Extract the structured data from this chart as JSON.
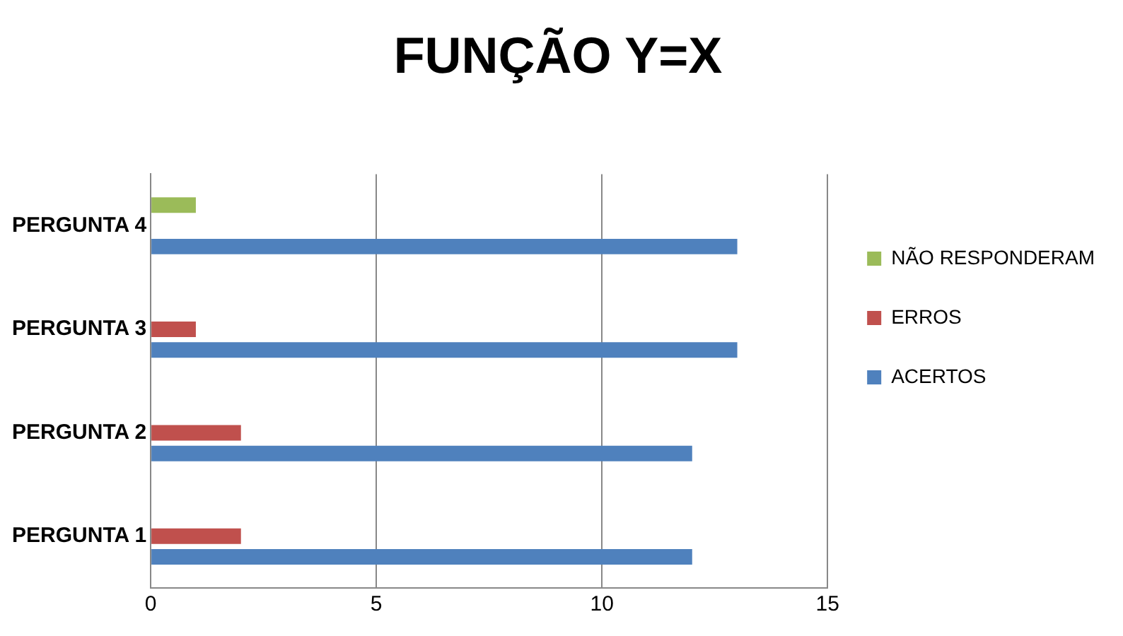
{
  "chart_data": {
    "type": "bar",
    "orientation": "horizontal",
    "title": "FUNÇÃO Y=X",
    "categories": [
      "PERGUNTA 4",
      "PERGUNTA 3",
      "PERGUNTA 2",
      "PERGUNTA 1"
    ],
    "series": [
      {
        "name": "ACERTOS",
        "color": "#4f81bd",
        "values": [
          13,
          13,
          12,
          12
        ]
      },
      {
        "name": "ERROS",
        "color": "#c0504d",
        "values": [
          0,
          1,
          2,
          2
        ]
      },
      {
        "name": "NÃO RESPONDERAM",
        "color": "#9bbb59",
        "values": [
          1,
          0,
          0,
          0
        ]
      }
    ],
    "xlim": [
      0,
      15
    ],
    "xticks": [
      0,
      5,
      10,
      15
    ],
    "grid": "x",
    "legend": "right"
  }
}
